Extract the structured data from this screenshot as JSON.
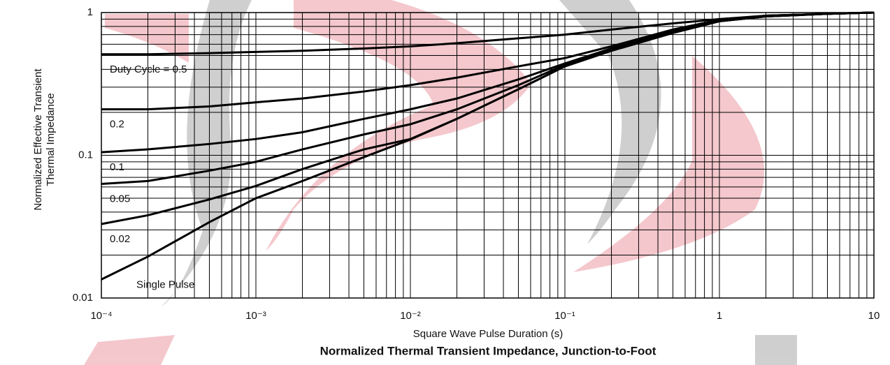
{
  "chart_data": {
    "type": "line",
    "title": "Normalized Thermal Transient Impedance, Junction-to-Foot",
    "x_label": "Square Wave Pulse Duration (s)",
    "y_label": [
      "Normalized Effective Transient",
      "Thermal Impedance"
    ],
    "x": [
      0.0001,
      0.0002,
      0.0005,
      0.001,
      0.002,
      0.005,
      0.01,
      0.02,
      0.05,
      0.1,
      0.2,
      0.5,
      1,
      2,
      5,
      10
    ],
    "xlog": true,
    "ylog": true,
    "grid": true,
    "color": "#000000",
    "xlim": [
      0.0001,
      10
    ],
    "xticks": [
      {
        "value": 0.0001,
        "label": "10⁻⁴"
      },
      {
        "value": 0.001,
        "label": "10⁻³"
      },
      {
        "value": 0.01,
        "label": "10⁻²"
      },
      {
        "value": 0.1,
        "label": "10⁻¹"
      },
      1,
      10
    ],
    "ylim": [
      0.01,
      1
    ],
    "yticks": [
      0.01,
      0.1,
      1
    ],
    "series": [
      {
        "name": "Duty Cycle = 0.5",
        "values": [
          0.51,
          0.51,
          0.52,
          0.53,
          0.54,
          0.56,
          0.58,
          0.61,
          0.66,
          0.7,
          0.76,
          0.84,
          0.9,
          0.95,
          0.98,
          1.0
        ]
      },
      {
        "name": "0.2",
        "values": [
          0.21,
          0.21,
          0.22,
          0.235,
          0.25,
          0.28,
          0.31,
          0.35,
          0.42,
          0.48,
          0.58,
          0.76,
          0.89,
          0.95,
          0.98,
          1.0
        ]
      },
      {
        "name": "0.1",
        "values": [
          0.105,
          0.11,
          0.12,
          0.13,
          0.145,
          0.18,
          0.21,
          0.25,
          0.34,
          0.44,
          0.56,
          0.74,
          0.88,
          0.95,
          0.98,
          1.0
        ]
      },
      {
        "name": "0.05",
        "values": [
          0.063,
          0.066,
          0.078,
          0.09,
          0.11,
          0.14,
          0.165,
          0.21,
          0.31,
          0.43,
          0.55,
          0.73,
          0.87,
          0.94,
          0.98,
          1.0
        ]
      },
      {
        "name": "0.02",
        "values": [
          0.033,
          0.038,
          0.049,
          0.061,
          0.08,
          0.11,
          0.13,
          0.18,
          0.29,
          0.42,
          0.54,
          0.72,
          0.87,
          0.94,
          0.98,
          1.0
        ]
      },
      {
        "name": "Single Pulse",
        "values": [
          0.0135,
          0.0195,
          0.034,
          0.05,
          0.066,
          0.097,
          0.129,
          0.18,
          0.29,
          0.42,
          0.54,
          0.72,
          0.87,
          0.94,
          0.98,
          1.0
        ]
      }
    ]
  }
}
